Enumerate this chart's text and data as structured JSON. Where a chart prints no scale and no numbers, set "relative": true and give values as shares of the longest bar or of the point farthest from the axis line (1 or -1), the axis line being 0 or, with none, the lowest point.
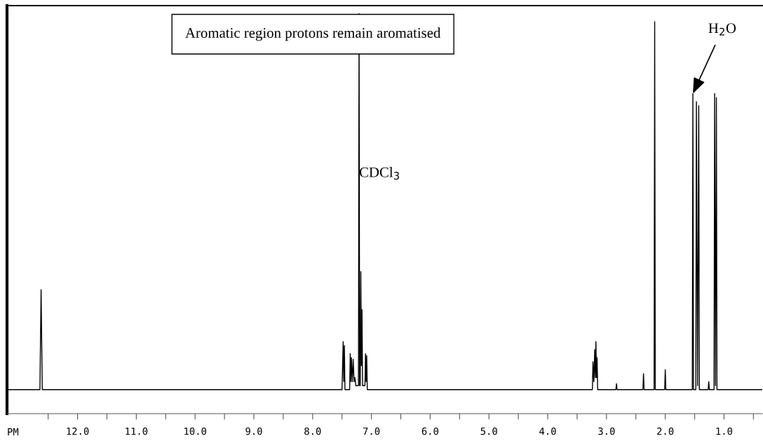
{
  "chart_data": {
    "type": "line",
    "relative": true,
    "xlabel": "PM",
    "color": "#000000",
    "x": [
      13.2,
      12.9,
      12.64,
      12.62,
      12.6,
      12.3,
      11.0,
      10.0,
      9.0,
      8.0,
      7.6,
      7.5,
      7.48,
      7.47,
      7.46,
      7.45,
      7.44,
      7.4,
      7.37,
      7.36,
      7.35,
      7.34,
      7.325,
      7.31,
      7.295,
      7.28,
      7.265,
      7.22,
      7.21,
      7.2,
      7.19,
      7.18,
      7.17,
      7.16,
      7.15,
      7.11,
      7.1,
      7.09,
      7.08,
      7.07,
      7.0,
      6.0,
      5.0,
      4.0,
      3.3,
      3.24,
      3.23,
      3.215,
      3.2,
      3.19,
      3.18,
      3.17,
      3.16,
      3.15,
      3.0,
      2.84,
      2.83,
      2.82,
      2.38,
      2.37,
      2.36,
      2.19,
      2.18,
      2.17,
      2.01,
      2.0,
      1.99,
      1.6,
      1.54,
      1.53,
      1.52,
      1.48,
      1.47,
      1.45,
      1.43,
      1.42,
      1.3,
      1.27,
      1.26,
      1.25,
      1.17,
      1.16,
      1.145,
      1.13,
      1.12,
      0.9,
      0.35
    ],
    "values": [
      0.06,
      0.06,
      0.06,
      0.31,
      0.06,
      0.06,
      0.06,
      0.06,
      0.06,
      0.06,
      0.06,
      0.06,
      0.18,
      0.08,
      0.17,
      0.06,
      0.06,
      0.06,
      0.06,
      0.15,
      0.08,
      0.14,
      0.08,
      0.136,
      0.08,
      0.09,
      0.07,
      0.07,
      1.0,
      0.07,
      0.07,
      0.355,
      0.12,
      0.26,
      0.07,
      0.07,
      0.15,
      0.08,
      0.145,
      0.06,
      0.06,
      0.06,
      0.06,
      0.06,
      0.06,
      0.06,
      0.13,
      0.08,
      0.16,
      0.09,
      0.18,
      0.09,
      0.14,
      0.06,
      0.06,
      0.06,
      0.075,
      0.06,
      0.06,
      0.1,
      0.06,
      0.06,
      0.98,
      0.06,
      0.06,
      0.11,
      0.06,
      0.06,
      0.06,
      0.8,
      0.06,
      0.06,
      0.78,
      0.07,
      0.77,
      0.06,
      0.06,
      0.06,
      0.08,
      0.06,
      0.06,
      0.8,
      0.07,
      0.79,
      0.06,
      0.06,
      0.06
    ],
    "xlim": [
      13.2,
      0.35
    ],
    "xticks": [
      {
        "value": 12.5,
        "label": null
      },
      {
        "value": 12,
        "label": "12.0"
      },
      {
        "value": 11.5,
        "label": null
      },
      {
        "value": 11,
        "label": "11.0"
      },
      {
        "value": 10.5,
        "label": null
      },
      {
        "value": 10,
        "label": "10.0"
      },
      {
        "value": 9.5,
        "label": null
      },
      {
        "value": 9,
        "label": "9.0"
      },
      {
        "value": 8.5,
        "label": null
      },
      {
        "value": 8,
        "label": "8.0"
      },
      {
        "value": 7.5,
        "label": null
      },
      {
        "value": 7,
        "label": "7.0"
      },
      {
        "value": 6.5,
        "label": null
      },
      {
        "value": 6,
        "label": "6.0"
      },
      {
        "value": 5.5,
        "label": null
      },
      {
        "value": 5,
        "label": "5.0"
      },
      {
        "value": 4.5,
        "label": null
      },
      {
        "value": 4,
        "label": "4.0"
      },
      {
        "value": 3.5,
        "label": null
      },
      {
        "value": 3,
        "label": "3.0"
      },
      {
        "value": 2.5,
        "label": null
      },
      {
        "value": 2,
        "label": "2.0"
      },
      {
        "value": 1.5,
        "label": null
      },
      {
        "value": 1,
        "label": "1.0"
      },
      {
        "value": 0.5,
        "label": null
      }
    ],
    "annotations": [
      "Aromatic region protons remain aromatised",
      {
        "text": "CDCl$_{3}$",
        "x": 7.21,
        "y": 0.6
      },
      {
        "text": "H$_{2}$O",
        "x": 1.53,
        "y": 0.8
      }
    ]
  }
}
